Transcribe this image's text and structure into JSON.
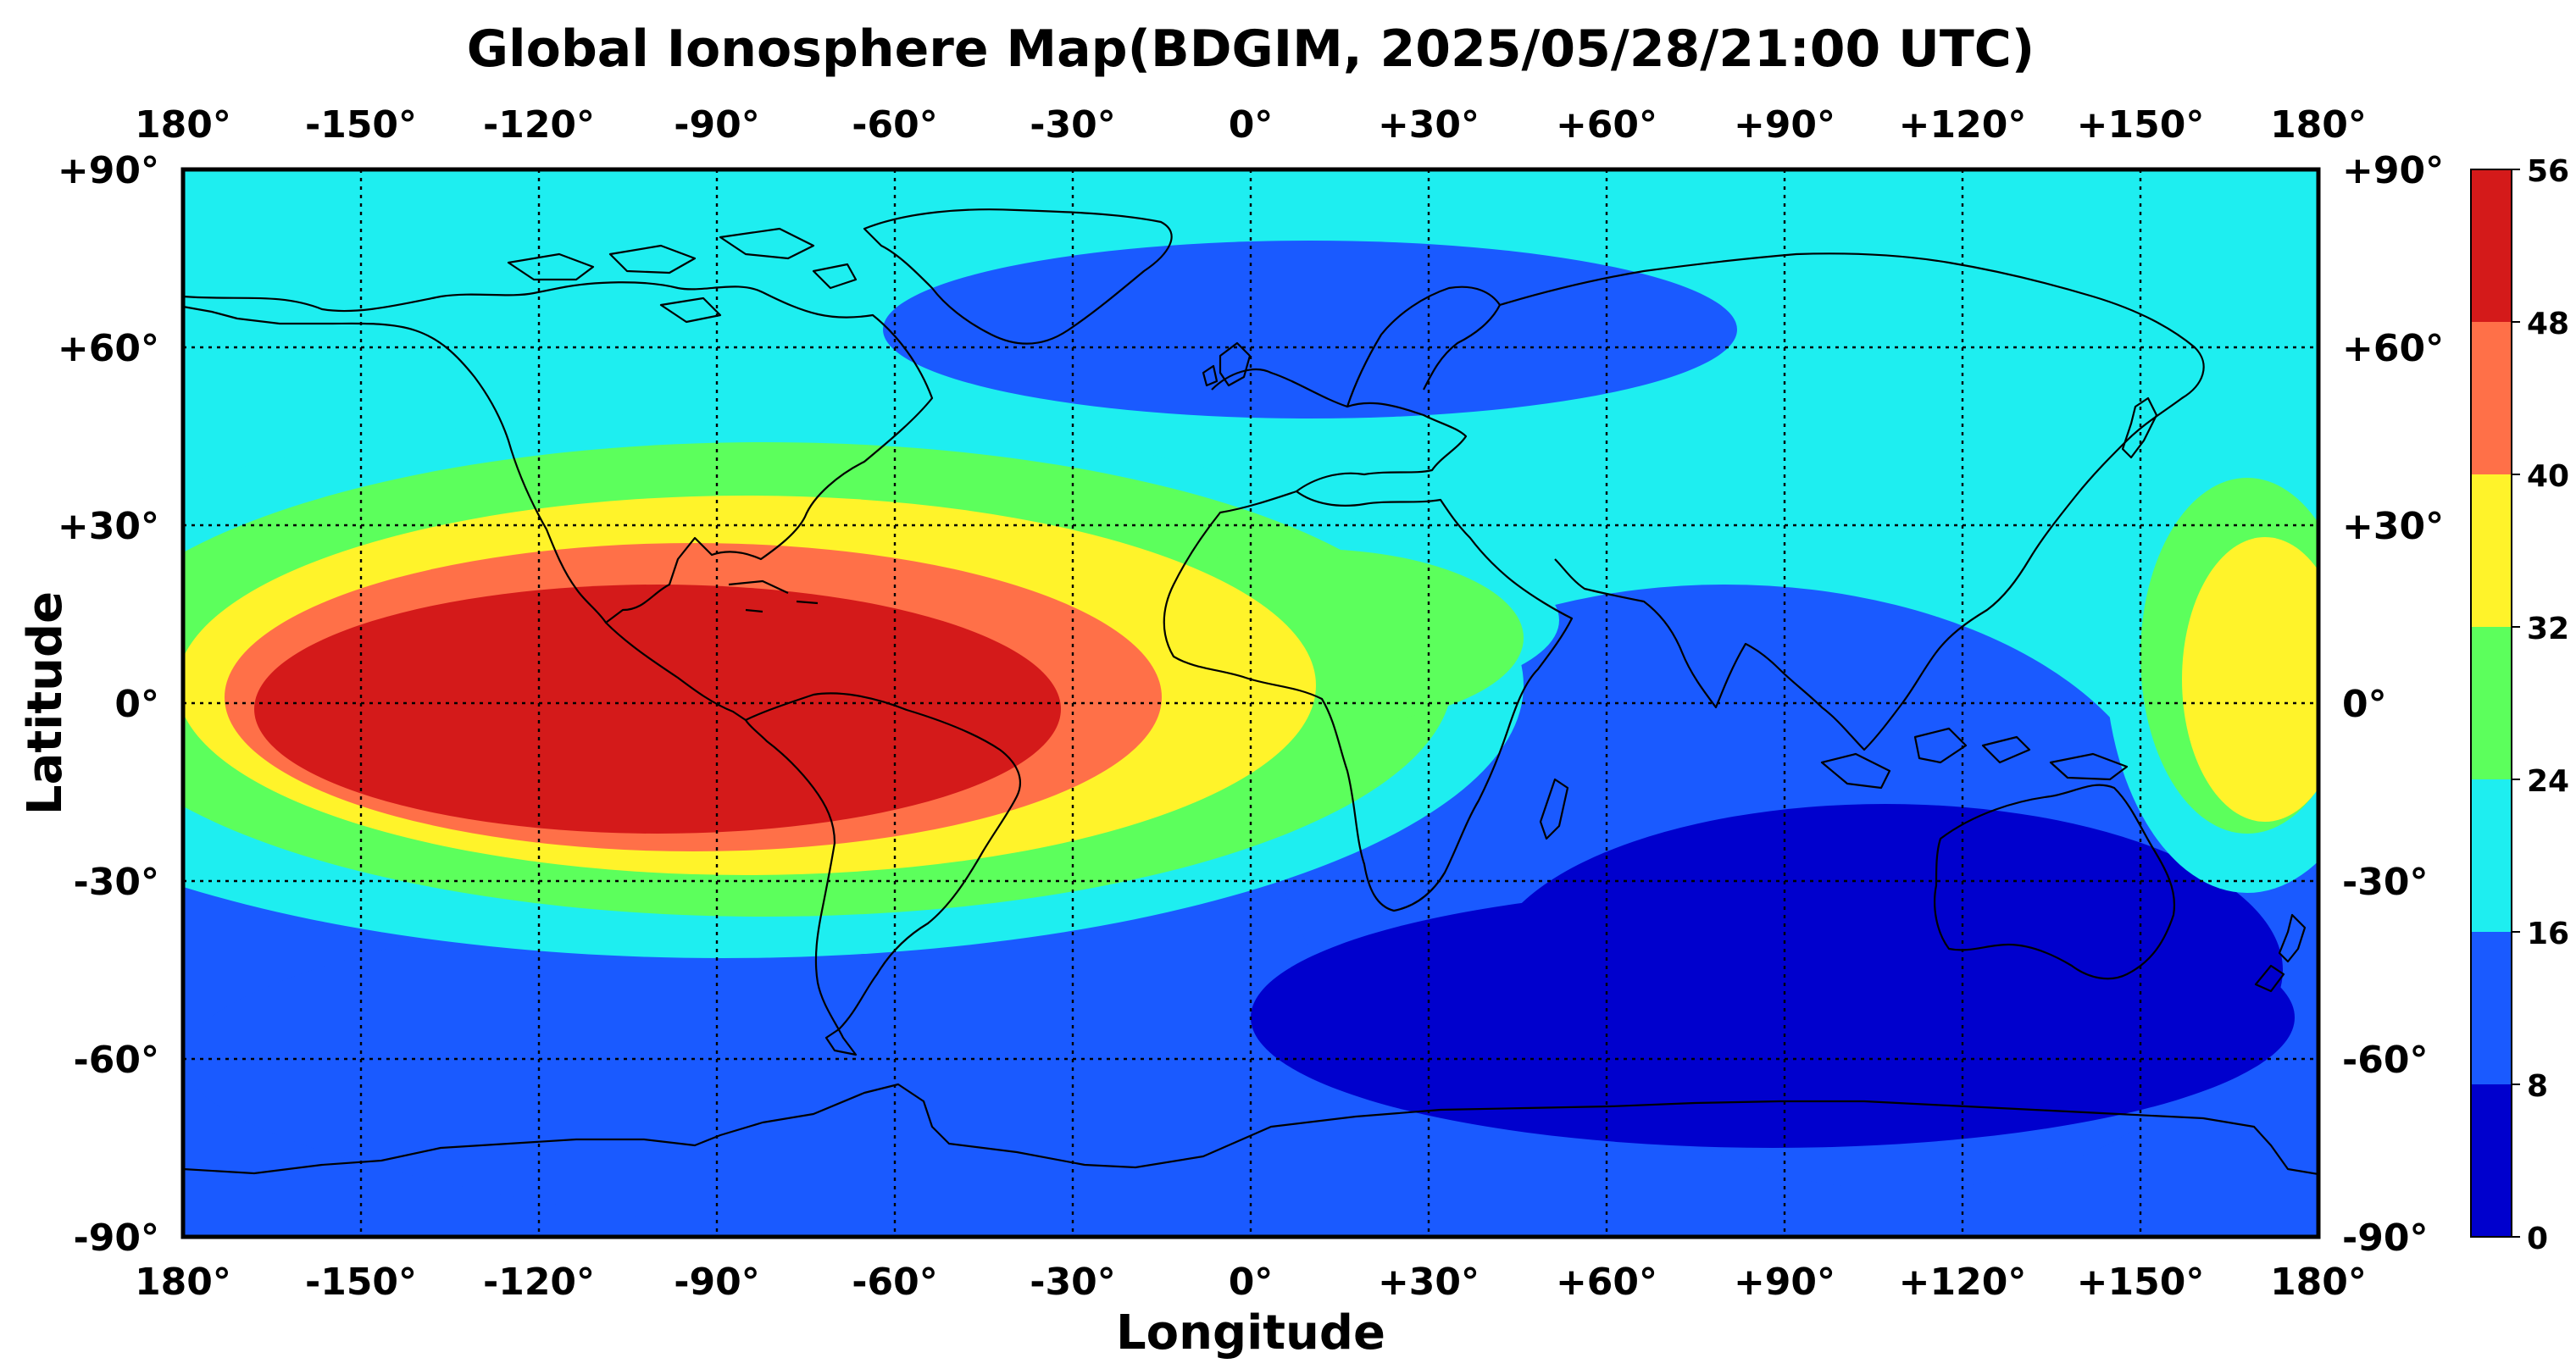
{
  "title": "Global Ionosphere Map(BDGIM, 2025/05/28/21:00 UTC)",
  "chart_data": {
    "type": "heatmap",
    "title": "Global Ionosphere Map(BDGIM, 2025/05/28/21:00 UTC)",
    "xlabel": "Longitude",
    "ylabel": "Latitude",
    "xlim": [
      -180,
      180
    ],
    "ylim": [
      -90,
      90
    ],
    "grid": true,
    "x_ticks": [
      -180,
      -150,
      -120,
      -90,
      -60,
      -30,
      0,
      30,
      60,
      90,
      120,
      150,
      180
    ],
    "x_tick_labels": [
      "180°",
      "-150°",
      "-120°",
      "-90°",
      "-60°",
      "-30°",
      "0°",
      "+30°",
      "+60°",
      "+90°",
      "+120°",
      "+150°",
      "180°"
    ],
    "y_ticks": [
      90,
      60,
      30,
      0,
      -30,
      -60,
      -90
    ],
    "y_tick_labels": [
      "+90°",
      "+60°",
      "+30°",
      "0°",
      "-30°",
      "-60°",
      "-90°"
    ],
    "colorbar": {
      "levels": [
        0,
        8,
        16,
        24,
        32,
        40,
        48,
        56
      ],
      "labels": [
        "0",
        "8",
        "16",
        "24",
        "32",
        "40",
        "48",
        "56"
      ],
      "colors": [
        "#0000cd",
        "#1a5aff",
        "#1eeef0",
        "#5cff5c",
        "#fff32a",
        "#ff7048",
        "#d41a1a"
      ]
    },
    "regions": [
      {
        "level": 8,
        "lon": 120,
        "lat": -60,
        "rlon": 300,
        "rlat": 40
      },
      {
        "level": 8,
        "lon": 10,
        "lat": 63,
        "rlon": 72,
        "rlat": 15
      },
      {
        "level": 8,
        "lon": 80,
        "lat": -25,
        "rlon": 75,
        "rlat": 45
      },
      {
        "level": 8,
        "lon": 110,
        "lat": -52,
        "rlon": 52,
        "rlat": 30
      },
      {
        "level": 0,
        "lon": 107,
        "lat": -45,
        "rlon": 67,
        "rlat": 28
      },
      {
        "level": 0,
        "lon": 88,
        "lat": -53,
        "rlon": 88,
        "rlat": 22
      },
      {
        "level": 16,
        "lon": -89,
        "lat": 3,
        "rlon": 135,
        "rlat": 46
      },
      {
        "level": 16,
        "lon": 12,
        "lat": 14,
        "rlon": 40,
        "rlat": 14
      },
      {
        "level": 16,
        "lon": 168,
        "lat": 8,
        "rlon": 24,
        "rlat": 40
      },
      {
        "level": 24,
        "lon": -82,
        "lat": 4,
        "rlon": 116,
        "rlat": 40
      },
      {
        "level": 24,
        "lon": 10,
        "lat": 11,
        "rlon": 36,
        "rlat": 15
      },
      {
        "level": 24,
        "lon": 168,
        "lat": 8,
        "rlon": 18,
        "rlat": 30
      },
      {
        "level": 32,
        "lon": -85,
        "lat": 3,
        "rlon": 96,
        "rlat": 32
      },
      {
        "level": 32,
        "lon": 171,
        "lat": 4,
        "rlon": 14,
        "rlat": 24
      },
      {
        "level": 40,
        "lon": -94,
        "lat": 1,
        "rlon": 79,
        "rlat": 26
      },
      {
        "level": 48,
        "lon": -100,
        "lat": -1,
        "rlon": 68,
        "rlat": 21
      }
    ]
  }
}
